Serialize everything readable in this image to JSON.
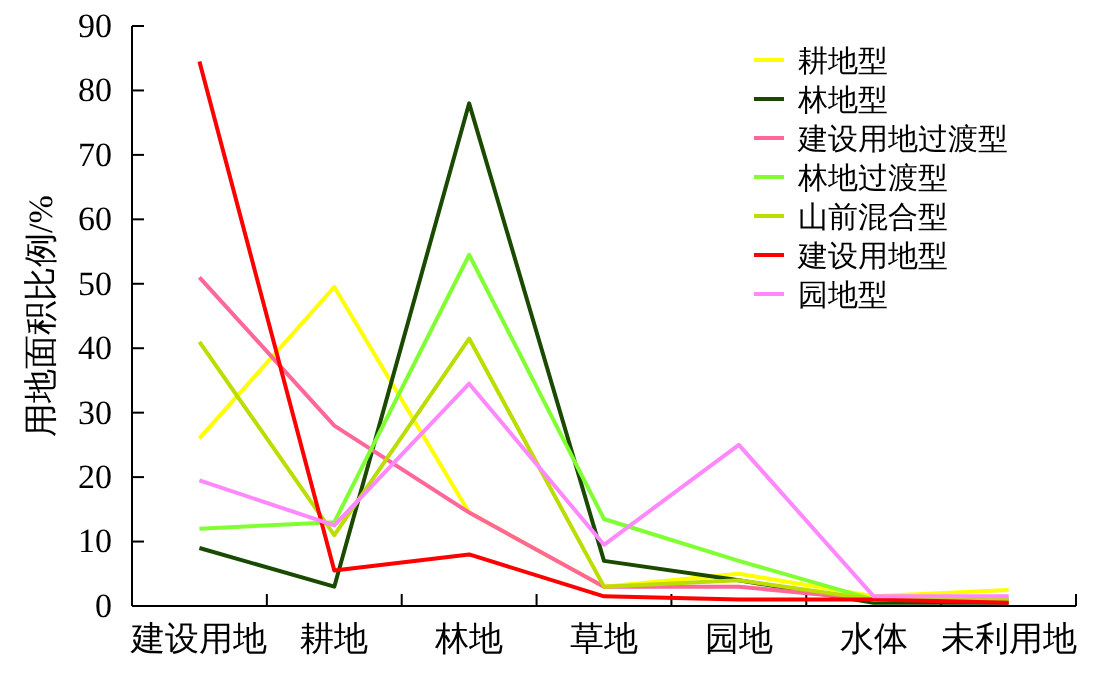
{
  "chart_data": {
    "type": "line",
    "ylabel": "用地面积比例/%",
    "categories": [
      "建设用地",
      "耕地",
      "林地",
      "草地",
      "园地",
      "水体",
      "未利用地"
    ],
    "ylim": [
      0,
      90
    ],
    "yticks": [
      0,
      10,
      20,
      30,
      40,
      50,
      60,
      70,
      80,
      90
    ],
    "grid": false,
    "legend": "top right",
    "marker": "none",
    "line_style": "solid",
    "series": [
      {
        "name": "耕地型",
        "color": "#ffff00",
        "values": [
          26,
          49.5,
          14.5,
          3,
          5,
          1.5,
          2.5
        ]
      },
      {
        "name": "林地型",
        "color": "#1a4a00",
        "values": [
          9,
          3,
          78,
          7,
          4,
          0.5,
          0.5
        ]
      },
      {
        "name": "建设用地过渡型",
        "color": "#ff6699",
        "values": [
          51,
          28,
          14.5,
          3,
          3,
          1,
          1
        ]
      },
      {
        "name": "林地过渡型",
        "color": "#80ff33",
        "values": [
          12,
          13,
          54.5,
          13.5,
          7,
          1,
          1
        ]
      },
      {
        "name": "山前混合型",
        "color": "#bbdd00",
        "values": [
          41,
          11,
          41.5,
          3,
          4,
          1,
          1
        ]
      },
      {
        "name": "建设用地型",
        "color": "#ff0000",
        "values": [
          84.5,
          5.5,
          8,
          1.5,
          1,
          1,
          0.5
        ]
      },
      {
        "name": "园地型",
        "color": "#ff88ff",
        "values": [
          19.5,
          12.5,
          34.5,
          9.5,
          25,
          1.5,
          1.5
        ]
      }
    ]
  }
}
